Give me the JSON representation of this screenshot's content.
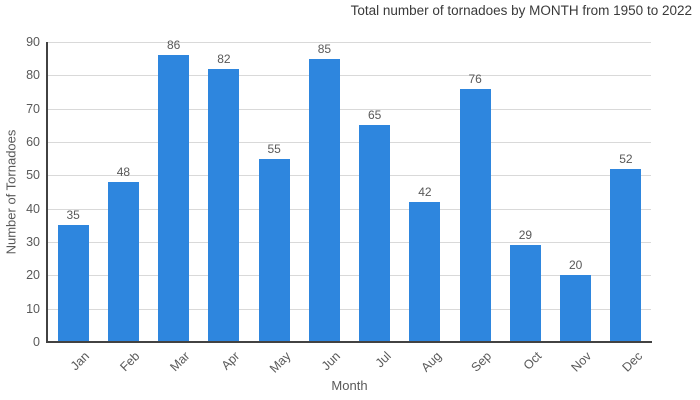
{
  "chart_data": {
    "type": "bar",
    "title": "Total number of tornadoes by MONTH from 1950 to 2022",
    "xlabel": "Month",
    "ylabel": "Number of Tornadoes",
    "categories": [
      "Jan",
      "Feb",
      "Mar",
      "Apr",
      "May",
      "Jun",
      "Jul",
      "Aug",
      "Sep",
      "Oct",
      "Nov",
      "Dec"
    ],
    "values": [
      35,
      48,
      86,
      82,
      55,
      85,
      65,
      42,
      76,
      29,
      20,
      52
    ],
    "ylim": [
      0,
      90
    ],
    "yticks": [
      0,
      10,
      20,
      30,
      40,
      50,
      60,
      70,
      80,
      90
    ],
    "grid": "horizontal",
    "legend_position": "none",
    "value_labels": true,
    "colors": {
      "bar": "#2E86DE",
      "gridline": "#d9d9d9",
      "axis": "#424242",
      "title_text": "#3a3a3a",
      "label_text": "#595959",
      "background": "#ffffff"
    }
  }
}
